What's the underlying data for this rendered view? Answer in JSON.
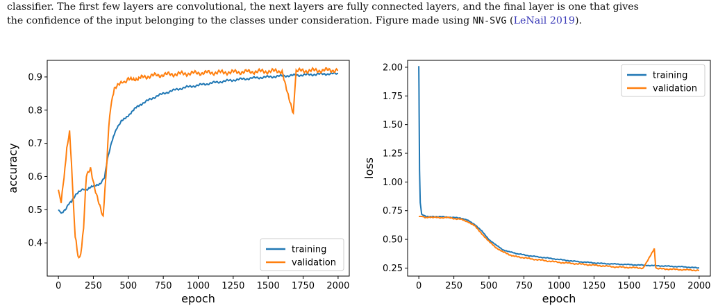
{
  "caption": {
    "line1": "classifier. The first few layers are convolutional, the next layers are fully connected layers, and the final layer is one that gives",
    "line2_pre": "the confidence of the input belonging to the classes under consideration. Figure made using",
    "tool": "NN-SVG",
    "citation_open": "(",
    "citation": "LeNail 2019",
    "citation_close": ")."
  },
  "colors": {
    "training": "#1f77b4",
    "validation": "#ff7f0e"
  },
  "chart_data": [
    {
      "type": "line",
      "xlabel": "epoch",
      "ylabel": "accuracy",
      "xlim": [
        -80,
        2080
      ],
      "ylim": [
        0.3,
        0.95
      ],
      "xticks": [
        "0",
        "250",
        "500",
        "750",
        "1000",
        "1250",
        "1500",
        "1750",
        "2000"
      ],
      "yticks": [
        "0.4",
        "0.5",
        "0.6",
        "0.7",
        "0.8",
        "0.9"
      ],
      "legend_position": "lower-right",
      "series": [
        {
          "name": "training",
          "x": [
            0,
            20,
            50,
            80,
            100,
            130,
            160,
            200,
            250,
            300,
            330,
            350,
            380,
            400,
            420,
            450,
            500,
            550,
            600,
            700,
            800,
            900,
            1000,
            1100,
            1200,
            1300,
            1400,
            1500,
            1600,
            1700,
            1800,
            1900,
            2000
          ],
          "y": [
            0.5,
            0.49,
            0.5,
            0.52,
            0.53,
            0.55,
            0.56,
            0.56,
            0.57,
            0.58,
            0.6,
            0.65,
            0.7,
            0.73,
            0.745,
            0.765,
            0.785,
            0.805,
            0.82,
            0.842,
            0.857,
            0.868,
            0.875,
            0.882,
            0.888,
            0.893,
            0.897,
            0.9,
            0.903,
            0.905,
            0.907,
            0.909,
            0.91
          ]
        },
        {
          "name": "validation",
          "x": [
            0,
            20,
            40,
            60,
            80,
            100,
            120,
            140,
            160,
            180,
            200,
            230,
            260,
            290,
            320,
            340,
            360,
            380,
            400,
            430,
            460,
            500,
            550,
            600,
            700,
            800,
            900,
            1000,
            1100,
            1200,
            1300,
            1400,
            1500,
            1600,
            1680,
            1700,
            1800,
            1900,
            2000
          ],
          "y": [
            0.56,
            0.52,
            0.6,
            0.68,
            0.74,
            0.58,
            0.42,
            0.36,
            0.36,
            0.45,
            0.6,
            0.62,
            0.56,
            0.52,
            0.48,
            0.6,
            0.75,
            0.83,
            0.86,
            0.875,
            0.885,
            0.89,
            0.895,
            0.9,
            0.905,
            0.908,
            0.91,
            0.912,
            0.913,
            0.914,
            0.915,
            0.916,
            0.917,
            0.918,
            0.79,
            0.918,
            0.919,
            0.92,
            0.921
          ]
        }
      ]
    },
    {
      "type": "line",
      "xlabel": "epoch",
      "ylabel": "loss",
      "xlim": [
        -80,
        2080
      ],
      "ylim": [
        0.18,
        2.06
      ],
      "xticks": [
        "0",
        "250",
        "500",
        "750",
        "1000",
        "1250",
        "1500",
        "1750",
        "2000"
      ],
      "yticks": [
        "0.25",
        "0.50",
        "0.75",
        "1.00",
        "1.25",
        "1.50",
        "1.75",
        "2.00"
      ],
      "legend_position": "upper-right",
      "series": [
        {
          "name": "training",
          "x": [
            0,
            2,
            5,
            10,
            20,
            50,
            100,
            200,
            300,
            350,
            400,
            450,
            500,
            550,
            600,
            650,
            700,
            800,
            900,
            1000,
            1100,
            1200,
            1300,
            1400,
            1500,
            1600,
            1700,
            1800,
            1900,
            2000
          ],
          "y": [
            2.01,
            1.6,
            1.1,
            0.82,
            0.72,
            0.7,
            0.7,
            0.695,
            0.685,
            0.665,
            0.63,
            0.57,
            0.5,
            0.45,
            0.41,
            0.39,
            0.375,
            0.355,
            0.34,
            0.325,
            0.31,
            0.3,
            0.29,
            0.285,
            0.28,
            0.275,
            0.27,
            0.265,
            0.26,
            0.25
          ]
        },
        {
          "name": "validation",
          "x": [
            0,
            20,
            50,
            100,
            200,
            300,
            350,
            400,
            450,
            500,
            550,
            600,
            650,
            700,
            800,
            900,
            1000,
            1100,
            1200,
            1300,
            1400,
            1500,
            1600,
            1680,
            1690,
            1700,
            1800,
            1900,
            2000
          ],
          "y": [
            0.7,
            0.7,
            0.69,
            0.69,
            0.69,
            0.675,
            0.655,
            0.615,
            0.55,
            0.48,
            0.43,
            0.39,
            0.365,
            0.35,
            0.33,
            0.315,
            0.3,
            0.29,
            0.28,
            0.27,
            0.26,
            0.255,
            0.25,
            0.42,
            0.25,
            0.245,
            0.24,
            0.235,
            0.23
          ]
        }
      ]
    }
  ]
}
